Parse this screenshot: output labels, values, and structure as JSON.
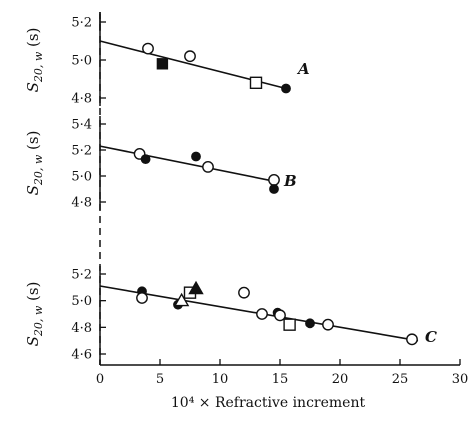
{
  "chart_data": {
    "type": "scatter",
    "xlabel": "10⁴ × Refractive increment",
    "xlim": [
      0,
      30
    ],
    "xticks": [
      "0",
      "5",
      "10",
      "15",
      "20",
      "25",
      "30"
    ],
    "panels": [
      {
        "label": "A",
        "ylabel": "S20, w (s)",
        "ylim": [
          4.8,
          5.2
        ],
        "yticks": [
          [
            "5·2",
            5.2
          ],
          [
            "5·0",
            5.0
          ],
          [
            "4·8",
            4.8
          ]
        ],
        "fit_line": {
          "x": [
            0,
            15.5
          ],
          "y": [
            5.1,
            4.85
          ]
        },
        "points": [
          {
            "x": 4.0,
            "y": 5.06,
            "marker": "open-circle"
          },
          {
            "x": 5.2,
            "y": 4.98,
            "marker": "filled-square"
          },
          {
            "x": 7.5,
            "y": 5.02,
            "marker": "open-circle"
          },
          {
            "x": 13.0,
            "y": 4.88,
            "marker": "open-square"
          },
          {
            "x": 15.5,
            "y": 4.85,
            "marker": "filled-circle"
          }
        ]
      },
      {
        "label": "B",
        "ylabel": "S20, w (s)",
        "ylim": [
          4.8,
          5.4
        ],
        "yticks": [
          [
            "5·4",
            5.4
          ],
          [
            "5·2",
            5.2
          ],
          [
            "5·0",
            5.0
          ],
          [
            "4·8",
            4.8
          ]
        ],
        "fit_line": {
          "x": [
            0,
            14.5
          ],
          "y": [
            5.23,
            4.96
          ]
        },
        "points": [
          {
            "x": 3.3,
            "y": 5.17,
            "marker": "open-circle"
          },
          {
            "x": 3.8,
            "y": 5.13,
            "marker": "filled-circle"
          },
          {
            "x": 8.0,
            "y": 5.15,
            "marker": "filled-circle"
          },
          {
            "x": 9.0,
            "y": 5.07,
            "marker": "open-circle"
          },
          {
            "x": 14.5,
            "y": 4.97,
            "marker": "open-circle"
          },
          {
            "x": 14.5,
            "y": 4.9,
            "marker": "filled-circle"
          }
        ]
      },
      {
        "label": "C",
        "ylabel": "S20, w (s)",
        "ylim": [
          4.6,
          5.2
        ],
        "yticks": [
          [
            "5·2",
            5.2
          ],
          [
            "5·0",
            5.0
          ],
          [
            "4·8",
            4.8
          ],
          [
            "4·6",
            4.6
          ]
        ],
        "fit_line": {
          "x": [
            0,
            26.5
          ],
          "y": [
            5.11,
            4.7
          ]
        },
        "points": [
          {
            "x": 3.5,
            "y": 5.07,
            "marker": "filled-circle"
          },
          {
            "x": 3.5,
            "y": 5.02,
            "marker": "open-circle"
          },
          {
            "x": 6.5,
            "y": 4.97,
            "marker": "filled-circle"
          },
          {
            "x": 6.8,
            "y": 5.0,
            "marker": "open-triangle"
          },
          {
            "x": 7.5,
            "y": 5.06,
            "marker": "open-square"
          },
          {
            "x": 8.0,
            "y": 5.09,
            "marker": "filled-triangle"
          },
          {
            "x": 12.0,
            "y": 5.06,
            "marker": "open-circle"
          },
          {
            "x": 13.5,
            "y": 4.9,
            "marker": "open-circle"
          },
          {
            "x": 14.8,
            "y": 4.91,
            "marker": "filled-circle"
          },
          {
            "x": 15.0,
            "y": 4.89,
            "marker": "open-circle"
          },
          {
            "x": 15.8,
            "y": 4.82,
            "marker": "open-square"
          },
          {
            "x": 17.5,
            "y": 4.83,
            "marker": "filled-circle"
          },
          {
            "x": 19.0,
            "y": 4.82,
            "marker": "open-circle"
          },
          {
            "x": 26.0,
            "y": 4.71,
            "marker": "open-circle"
          }
        ]
      }
    ]
  }
}
